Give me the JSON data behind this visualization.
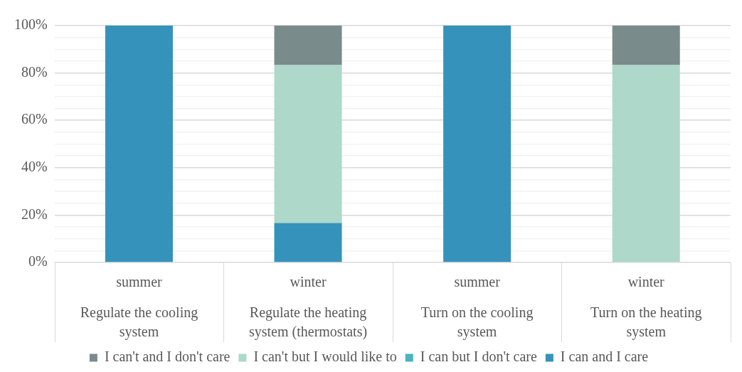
{
  "chart_data": {
    "type": "bar",
    "stacked": true,
    "categories": [
      "summer",
      "winter",
      "summer",
      "winter"
    ],
    "annotations": [
      "Regulate the cooling system",
      "Regulate the heating system (thermostats)",
      "Turn on the cooling system",
      "Turn on the heating system"
    ],
    "series": [
      {
        "name": "I can and I care",
        "color": "#3593bb",
        "values": [
          100,
          16.7,
          100,
          0
        ]
      },
      {
        "name": "I can but I don't care",
        "color": "#4bb3bf",
        "values": [
          0,
          0,
          0,
          0
        ]
      },
      {
        "name": "I can't but I would like to",
        "color": "#add8ca",
        "values": [
          0,
          66.6,
          0,
          83.3
        ]
      },
      {
        "name": "I can't and I don't care",
        "color": "#7a8b8c",
        "values": [
          0,
          16.7,
          0,
          16.7
        ]
      }
    ],
    "ylim": [
      0,
      100
    ],
    "yticks": [
      {
        "value": 0,
        "label": "0%"
      },
      {
        "value": 5,
        "label": null
      },
      {
        "value": 10,
        "label": null
      },
      {
        "value": 15,
        "label": null
      },
      {
        "value": 20,
        "label": "20%"
      },
      {
        "value": 25,
        "label": null
      },
      {
        "value": 30,
        "label": null
      },
      {
        "value": 35,
        "label": null
      },
      {
        "value": 40,
        "label": "40%"
      },
      {
        "value": 45,
        "label": null
      },
      {
        "value": 50,
        "label": null
      },
      {
        "value": 55,
        "label": null
      },
      {
        "value": 60,
        "label": "60%"
      },
      {
        "value": 65,
        "label": null
      },
      {
        "value": 70,
        "label": null
      },
      {
        "value": 75,
        "label": null
      },
      {
        "value": 80,
        "label": "80%"
      },
      {
        "value": 85,
        "label": null
      },
      {
        "value": 90,
        "label": null
      },
      {
        "value": 95,
        "label": null
      },
      {
        "value": 100,
        "label": "100%"
      }
    ],
    "grid": "y",
    "legend": "bottom"
  }
}
